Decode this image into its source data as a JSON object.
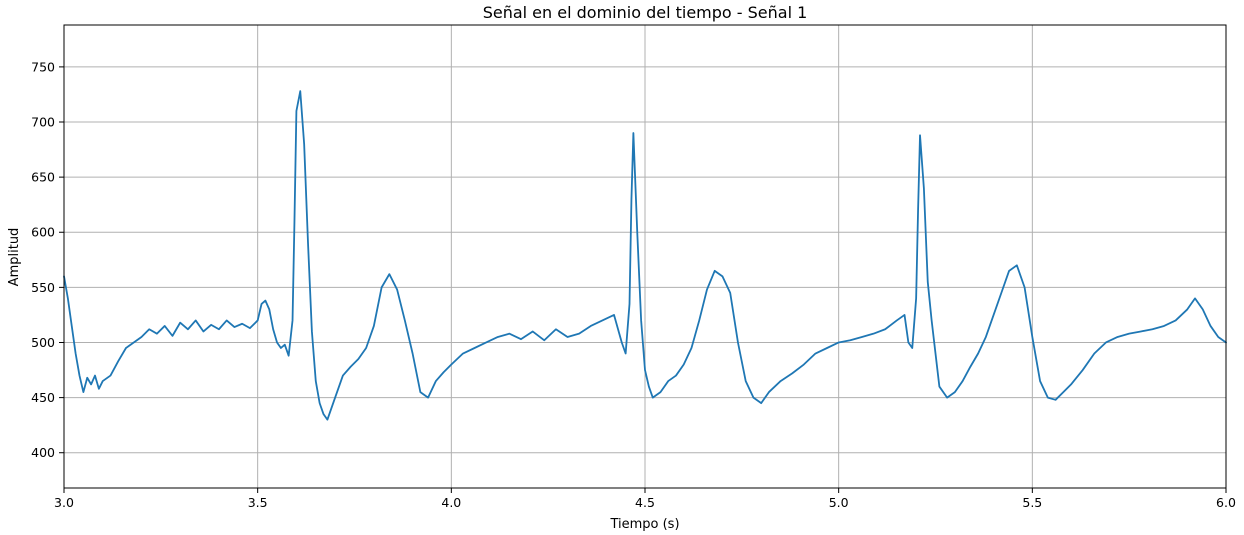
{
  "chart_data": {
    "type": "line",
    "title": "Señal en el dominio del tiempo - Señal 1",
    "xlabel": "Tiempo (s)",
    "ylabel": "Amplitud",
    "xlim": [
      3.0,
      6.0
    ],
    "ylim": [
      368,
      788
    ],
    "x_ticks": [
      3.0,
      3.5,
      4.0,
      4.5,
      5.0,
      5.5,
      6.0
    ],
    "x_tick_labels": [
      "3.0",
      "3.5",
      "4.0",
      "4.5",
      "5.0",
      "5.5",
      "6.0"
    ],
    "y_ticks": [
      400,
      450,
      500,
      550,
      600,
      650,
      700,
      750
    ],
    "y_tick_labels": [
      "400",
      "450",
      "500",
      "550",
      "600",
      "650",
      "700",
      "750"
    ],
    "grid": true,
    "series": [
      {
        "name": "",
        "color": "#1f77b4",
        "x": [
          3.0,
          3.01,
          3.02,
          3.03,
          3.04,
          3.05,
          3.06,
          3.07,
          3.08,
          3.09,
          3.1,
          3.12,
          3.14,
          3.16,
          3.18,
          3.2,
          3.22,
          3.24,
          3.26,
          3.28,
          3.3,
          3.32,
          3.34,
          3.36,
          3.38,
          3.4,
          3.42,
          3.44,
          3.46,
          3.48,
          3.5,
          3.51,
          3.52,
          3.53,
          3.54,
          3.55,
          3.56,
          3.57,
          3.58,
          3.59,
          3.595,
          3.6,
          3.61,
          3.62,
          3.63,
          3.64,
          3.65,
          3.66,
          3.67,
          3.68,
          3.7,
          3.72,
          3.74,
          3.76,
          3.78,
          3.8,
          3.82,
          3.84,
          3.86,
          3.88,
          3.9,
          3.92,
          3.94,
          3.96,
          3.98,
          4.0,
          4.03,
          4.06,
          4.09,
          4.12,
          4.15,
          4.18,
          4.21,
          4.24,
          4.27,
          4.3,
          4.33,
          4.36,
          4.39,
          4.42,
          4.44,
          4.45,
          4.46,
          4.465,
          4.47,
          4.48,
          4.49,
          4.5,
          4.51,
          4.52,
          4.54,
          4.56,
          4.58,
          4.6,
          4.62,
          4.64,
          4.66,
          4.68,
          4.7,
          4.72,
          4.74,
          4.76,
          4.78,
          4.8,
          4.82,
          4.85,
          4.88,
          4.91,
          4.94,
          4.97,
          5.0,
          5.03,
          5.06,
          5.09,
          5.12,
          5.15,
          5.17,
          5.18,
          5.19,
          5.2,
          5.205,
          5.21,
          5.22,
          5.23,
          5.24,
          5.25,
          5.26,
          5.28,
          5.3,
          5.32,
          5.34,
          5.36,
          5.38,
          5.4,
          5.42,
          5.44,
          5.46,
          5.48,
          5.5,
          5.52,
          5.54,
          5.56,
          5.58,
          5.6,
          5.63,
          5.66,
          5.69,
          5.72,
          5.75,
          5.78,
          5.81,
          5.84,
          5.87,
          5.9,
          5.92,
          5.94,
          5.96,
          5.98,
          6.0
        ],
        "y": [
          560,
          540,
          515,
          490,
          470,
          455,
          468,
          462,
          470,
          458,
          465,
          470,
          483,
          495,
          500,
          505,
          512,
          508,
          515,
          506,
          518,
          512,
          520,
          510,
          516,
          512,
          520,
          514,
          517,
          513,
          520,
          535,
          538,
          530,
          512,
          500,
          495,
          498,
          488,
          520,
          610,
          710,
          728,
          680,
          590,
          510,
          465,
          445,
          435,
          430,
          450,
          470,
          478,
          485,
          495,
          515,
          550,
          562,
          548,
          520,
          490,
          455,
          450,
          465,
          473,
          480,
          490,
          495,
          500,
          505,
          508,
          503,
          510,
          502,
          512,
          505,
          508,
          515,
          520,
          525,
          500,
          490,
          535,
          630,
          690,
          600,
          520,
          475,
          460,
          450,
          455,
          465,
          470,
          480,
          495,
          520,
          548,
          565,
          560,
          545,
          500,
          465,
          450,
          445,
          455,
          465,
          472,
          480,
          490,
          495,
          500,
          502,
          505,
          508,
          512,
          520,
          525,
          500,
          495,
          540,
          620,
          688,
          640,
          555,
          520,
          490,
          460,
          450,
          455,
          465,
          478,
          490,
          505,
          525,
          545,
          565,
          570,
          550,
          505,
          465,
          450,
          448,
          455,
          462,
          475,
          490,
          500,
          505,
          508,
          510,
          512,
          515,
          520,
          530,
          540,
          530,
          515,
          505,
          500
        ]
      }
    ]
  }
}
